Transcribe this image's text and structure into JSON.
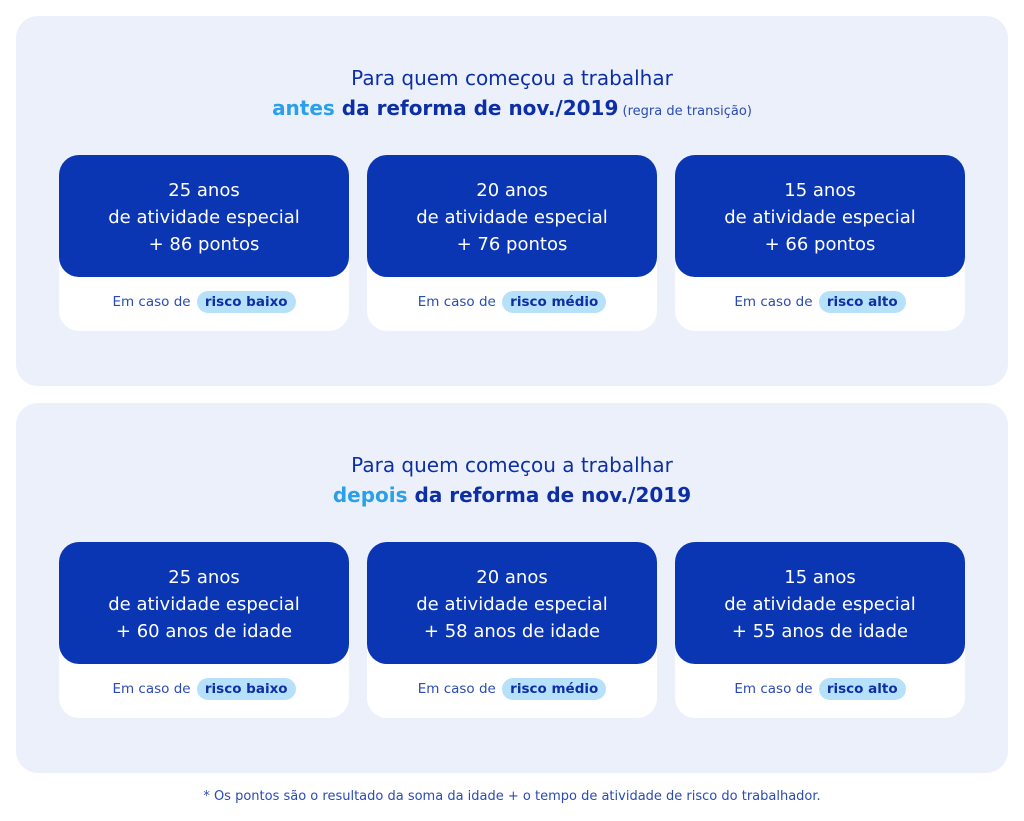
{
  "sections": [
    {
      "line1": "Para quem começou a trabalhar",
      "highlight": "antes",
      "rest": " da reforma de nov./2019",
      "note": " (regra de transição)",
      "cards": [
        {
          "years": "25 anos",
          "activity": "de atividade especial",
          "requirement": "+ 86 pontos",
          "prefix": "Em caso de",
          "risk": "risco baixo"
        },
        {
          "years": "20 anos",
          "activity": "de atividade especial",
          "requirement": "+ 76 pontos",
          "prefix": "Em caso de",
          "risk": "risco médio"
        },
        {
          "years": "15 anos",
          "activity": "de atividade especial",
          "requirement": "+ 66 pontos",
          "prefix": "Em caso de",
          "risk": "risco alto"
        }
      ]
    },
    {
      "line1": "Para quem começou a trabalhar",
      "highlight": "depois",
      "rest": " da reforma de nov./2019",
      "note": "",
      "cards": [
        {
          "years": "25 anos",
          "activity": "de atividade especial",
          "requirement": "+ 60 anos de idade",
          "prefix": "Em caso de",
          "risk": "risco baixo"
        },
        {
          "years": "20 anos",
          "activity": "de atividade especial",
          "requirement": "+ 58 anos de idade",
          "prefix": "Em caso de",
          "risk": "risco médio"
        },
        {
          "years": "15 anos",
          "activity": "de atividade especial",
          "requirement": "+ 55 anos de idade",
          "prefix": "Em caso de",
          "risk": "risco alto"
        }
      ]
    }
  ],
  "footnote": "* Os pontos são o resultado da soma da idade + o tempo de atividade de risco do trabalhador.",
  "colors": {
    "panel": "#ecf0fb",
    "card_head": "#0b36b3",
    "highlight": "#2aa0ea",
    "pill": "#b7e1fb",
    "text": "#0d2fa6"
  }
}
